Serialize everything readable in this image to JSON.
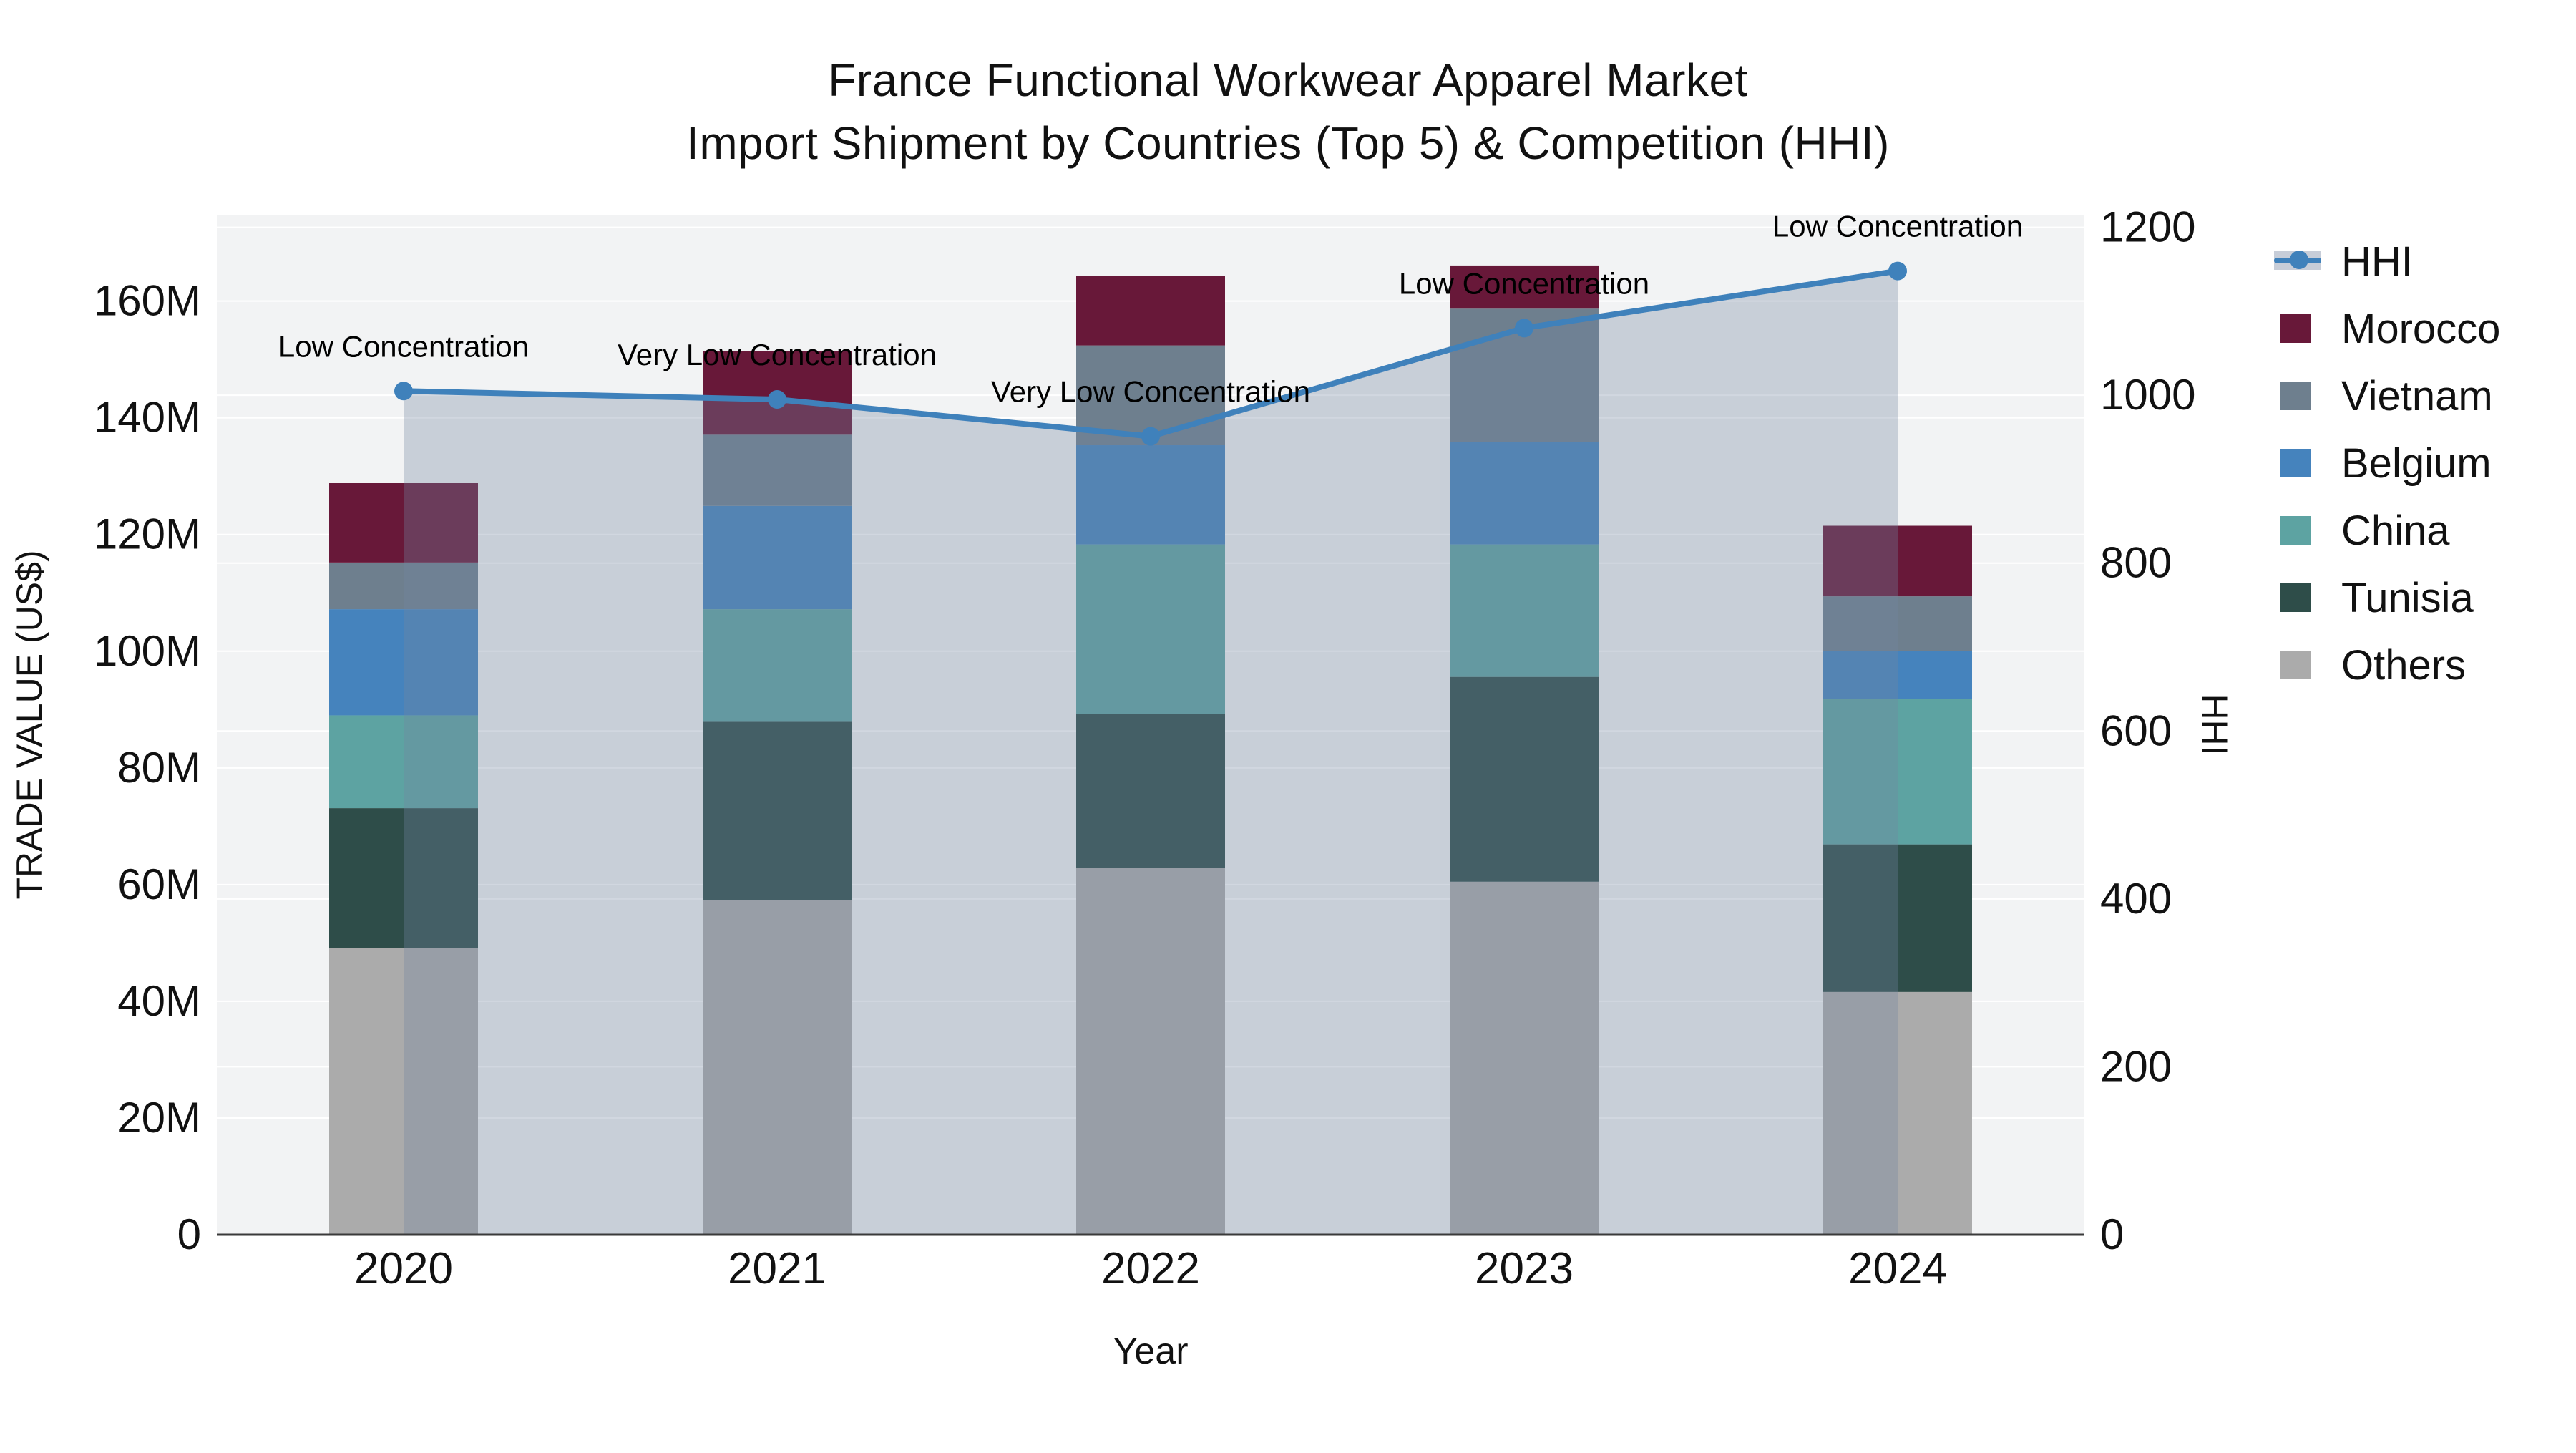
{
  "title": {
    "line1": "France Functional Workwear Apparel Market",
    "line2": "Import Shipment by Countries (Top 5) & Competition (HHI)"
  },
  "legend": {
    "items": [
      {
        "label": "HHI",
        "type": "line",
        "color": "#3f81bb"
      },
      {
        "label": "Morocco",
        "type": "square",
        "color": "#681839"
      },
      {
        "label": "Vietnam",
        "type": "square",
        "color": "#6e7f8e"
      },
      {
        "label": "Belgium",
        "type": "square",
        "color": "#4583bd"
      },
      {
        "label": "China",
        "type": "square",
        "color": "#5da3a2"
      },
      {
        "label": "Tunisia",
        "type": "square",
        "color": "#2e4d49"
      },
      {
        "label": "Others",
        "type": "square",
        "color": "#ababab"
      }
    ]
  },
  "chart_data": {
    "type": "bar",
    "subtype": "stacked-bars-with-line",
    "categories": [
      "2020",
      "2021",
      "2022",
      "2023",
      "2024"
    ],
    "series": [
      {
        "name": "Others",
        "color": "#ababab",
        "values": [
          49.1,
          57.4,
          62.9,
          60.5,
          41.6
        ]
      },
      {
        "name": "Tunisia",
        "color": "#2e4d49",
        "values": [
          24.0,
          30.5,
          26.4,
          35.1,
          25.3
        ]
      },
      {
        "name": "China",
        "color": "#5da3a2",
        "values": [
          15.9,
          19.3,
          29.0,
          22.7,
          24.9
        ]
      },
      {
        "name": "Belgium",
        "color": "#4583bd",
        "values": [
          18.2,
          17.7,
          17.0,
          17.5,
          8.2
        ]
      },
      {
        "name": "Vietnam",
        "color": "#6e7f8e",
        "values": [
          8.0,
          12.2,
          17.1,
          22.9,
          9.4
        ]
      },
      {
        "name": "Morocco",
        "color": "#681839",
        "values": [
          13.6,
          14.3,
          11.9,
          7.4,
          12.1
        ]
      }
    ],
    "bar_totals_millions": [
      128.8,
      151.4,
      164.3,
      166.1,
      121.5
    ],
    "line_series": {
      "name": "HHI",
      "color": "#3f81bb",
      "fill": "rgba(115,133,160,0.33)",
      "values": [
        1005,
        995,
        951,
        1080,
        1148
      ]
    },
    "annotations": [
      {
        "text": "Low Concentration",
        "category": "2020"
      },
      {
        "text": "Very Low Concentration",
        "category": "2021"
      },
      {
        "text": "Very Low Concentration",
        "category": "2022"
      },
      {
        "text": "Low Concentration",
        "category": "2023"
      },
      {
        "text": "Low Concentration",
        "category": "2024"
      }
    ],
    "left_axis": {
      "title": "TRADE VALUE (US$)",
      "tick_labels": [
        "0",
        "20M",
        "40M",
        "60M",
        "80M",
        "100M",
        "120M",
        "140M",
        "160M"
      ],
      "tick_values_millions": [
        0,
        20,
        40,
        60,
        80,
        100,
        120,
        140,
        160
      ],
      "range_max_millions": 174.8
    },
    "right_axis": {
      "title": "HHI",
      "tick_labels": [
        "0",
        "200",
        "400",
        "600",
        "800",
        "1000",
        "1200"
      ],
      "tick_values": [
        0,
        200,
        400,
        600,
        800,
        1000,
        1200
      ],
      "range_max": 1215
    },
    "x_axis": {
      "title": "Year"
    },
    "grid": true,
    "legend_position": "right",
    "plot_bg": "#f2f3f4",
    "gridline_color": "#ffffff",
    "axis_line_color": "#3a3a3a",
    "text_color": "#111111"
  }
}
